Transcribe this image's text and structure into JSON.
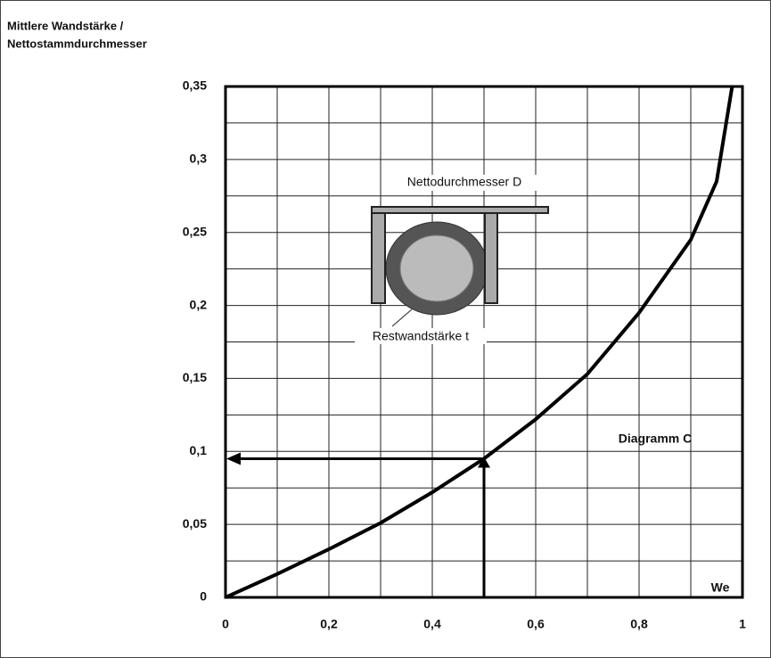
{
  "chart_data": {
    "type": "line",
    "title_lines": [
      "Mittlere Wandstärke /",
      "Nettostammdurchmesser"
    ],
    "xlabel": "We",
    "annotation": "Diagramm C",
    "inset_labels": [
      "Nettodurchmesser D",
      "Restwandstärke t"
    ],
    "x": [
      0,
      0.1,
      0.2,
      0.3,
      0.4,
      0.5,
      0.6,
      0.7,
      0.8,
      0.9,
      0.95,
      0.98
    ],
    "values": [
      0,
      0.016,
      0.033,
      0.051,
      0.072,
      0.095,
      0.122,
      0.153,
      0.195,
      0.245,
      0.285,
      0.35
    ],
    "color": "#000000",
    "reading": {
      "x": 0.5,
      "y": 0.095
    },
    "xlim": [
      0,
      1
    ],
    "ylim": [
      0,
      0.35
    ],
    "xticks": [
      0,
      {
        "value": 0.2,
        "label": "0,2"
      },
      {
        "value": 0.4,
        "label": "0,4"
      },
      {
        "value": 0.6,
        "label": "0,6"
      },
      {
        "value": 0.8,
        "label": "0,8"
      },
      1
    ],
    "yticks": [
      0,
      {
        "value": 0.05,
        "label": "0,05"
      },
      {
        "value": 0.1,
        "label": "0,1"
      },
      {
        "value": 0.15,
        "label": "0,15"
      },
      {
        "value": 0.2,
        "label": "0,2"
      },
      {
        "value": 0.25,
        "label": "0,25"
      },
      {
        "value": 0.3,
        "label": "0,3"
      },
      {
        "value": 0.35,
        "label": "0,35"
      }
    ],
    "minor_xticks": [
      0.1,
      0.3,
      0.5,
      0.7,
      0.9
    ],
    "minor_yticks": [
      0.025,
      0.075,
      0.125,
      0.175,
      0.225,
      0.275,
      0.325
    ],
    "grid": true
  }
}
